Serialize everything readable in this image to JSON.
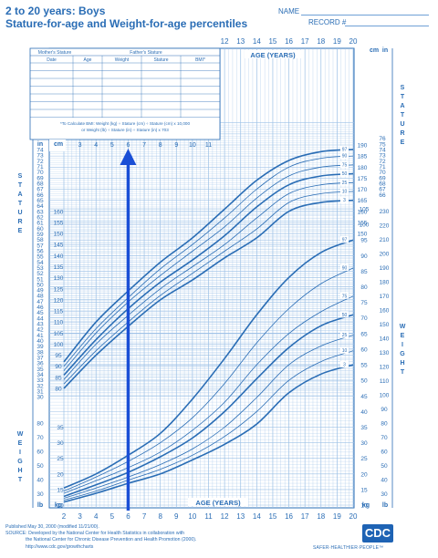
{
  "header": {
    "title_line1": "2 to 20 years: Boys",
    "title_line2": "Stature-for-age and Weight-for-age percentiles",
    "name_label": "NAME",
    "record_label": "RECORD #"
  },
  "table": {
    "mothers_stature": "Mother's Stature",
    "fathers_stature": "Father's Stature",
    "columns": [
      "Date",
      "Age",
      "Weight",
      "Stature",
      "BMI*"
    ],
    "bmi_note_line1": "*To Calculate BMI: Weight (kg) ÷ Stature (cm) ÷ Stature (cm) x 10,000",
    "bmi_note_line2": "or Weight (lb) ÷ Stature (in) ÷ Stature (in) x 703"
  },
  "labels": {
    "age_years": "AGE (YEARS)",
    "in": "in",
    "cm": "cm",
    "lb": "lb",
    "kg": "kg",
    "stature_vertical": "STATURE",
    "weight_vertical": "WEIGHT"
  },
  "footer": {
    "line1": "Published May 30, 2000 (modified 11/21/00).",
    "line2": "SOURCE: Developed by the National Center for Health Statistics in collaboration with",
    "line3": "the National Center for Chronic Disease Prevention and Health Promotion (2000).",
    "line4": "http://www.cdc.gov/growthcharts",
    "logo": "CDC",
    "tagline": "SAFER·HEALTHIER·PEOPLE™"
  },
  "colors": {
    "primary": "#2a6db5",
    "grid": "#9cc0e6",
    "arrow": "#1a4fd6"
  },
  "chart_data": {
    "type": "line",
    "title": "Stature-for-age and Weight-for-age percentiles",
    "xlabel": "AGE (YEARS)",
    "x_ticks": [
      2,
      3,
      4,
      5,
      6,
      7,
      8,
      9,
      10,
      11,
      12,
      13,
      14,
      15,
      16,
      17,
      18,
      19,
      20
    ],
    "xlim": [
      2,
      20
    ],
    "stature": {
      "ylabel": "cm",
      "ylim": [
        75,
        200
      ],
      "cm_ticks": [
        80,
        85,
        90,
        95,
        100,
        105,
        110,
        115,
        120,
        125,
        130,
        135,
        140,
        145,
        150,
        155,
        160,
        165,
        170,
        175,
        180,
        185,
        190
      ],
      "in_ticks": [
        30,
        31,
        32,
        33,
        34,
        35,
        36,
        37,
        38,
        39,
        40,
        41,
        42,
        43,
        44,
        45,
        46,
        47,
        48,
        49,
        50,
        51,
        52,
        53,
        54,
        55,
        56,
        57,
        58,
        59,
        60,
        61,
        62,
        63,
        64,
        65,
        66,
        67,
        68,
        69,
        70,
        71,
        72,
        73,
        74,
        75,
        76
      ],
      "ages": [
        2,
        4,
        6,
        8,
        10,
        12,
        14,
        16,
        18,
        20
      ],
      "series": [
        {
          "name": "97",
          "values": [
            92,
            110,
            124,
            137,
            148,
            161,
            174,
            183,
            187,
            188
          ]
        },
        {
          "name": "90",
          "values": [
            90,
            107,
            121,
            134,
            145,
            157,
            170,
            180,
            184,
            185
          ]
        },
        {
          "name": "75",
          "values": [
            88,
            105,
            119,
            131,
            142,
            153,
            166,
            176,
            180,
            181
          ]
        },
        {
          "name": "50",
          "values": [
            86,
            102,
            116,
            128,
            138,
            149,
            162,
            172,
            176,
            177
          ]
        },
        {
          "name": "25",
          "values": [
            84,
            100,
            113,
            125,
            135,
            145,
            157,
            168,
            172,
            173
          ]
        },
        {
          "name": "10",
          "values": [
            82,
            97,
            110,
            122,
            132,
            142,
            152,
            164,
            168,
            169
          ]
        },
        {
          "name": "3",
          "values": [
            80,
            95,
            108,
            120,
            129,
            139,
            148,
            160,
            164,
            165
          ]
        }
      ]
    },
    "weight": {
      "ylabel": "kg",
      "ylim": [
        10,
        105
      ],
      "kg_ticks": [
        10,
        15,
        20,
        25,
        30,
        35,
        40,
        45,
        50,
        55,
        60,
        65,
        70,
        75,
        80,
        85,
        90,
        95,
        100,
        105
      ],
      "lb_ticks": [
        30,
        40,
        50,
        60,
        70,
        80,
        90,
        100,
        110,
        120,
        130,
        140,
        150,
        160,
        170,
        180,
        190,
        200,
        210,
        220,
        230
      ],
      "ages": [
        2,
        4,
        6,
        8,
        10,
        12,
        14,
        16,
        18,
        20
      ],
      "series": [
        {
          "name": "97",
          "values": [
            15.5,
            20,
            26,
            33,
            44,
            57,
            71,
            83,
            91,
            95
          ]
        },
        {
          "name": "90",
          "values": [
            14.5,
            19,
            24,
            30,
            38,
            49,
            62,
            73,
            81,
            86
          ]
        },
        {
          "name": "75",
          "values": [
            13.8,
            17.8,
            22,
            27,
            34,
            43,
            55,
            65,
            72,
            77
          ]
        },
        {
          "name": "50",
          "values": [
            12.8,
            16.5,
            20.5,
            25.5,
            31.5,
            40,
            50.5,
            60.5,
            67.5,
            71
          ]
        },
        {
          "name": "25",
          "values": [
            12.2,
            15.5,
            19,
            23,
            28,
            35,
            44.5,
            55,
            61,
            64.5
          ]
        },
        {
          "name": "10",
          "values": [
            11.6,
            14.5,
            18,
            21.5,
            26,
            32,
            40,
            50,
            56,
            59.5
          ]
        },
        {
          "name": "3",
          "values": [
            11,
            13.8,
            17,
            20,
            24.5,
            29.5,
            36,
            46,
            52,
            55
          ]
        }
      ]
    },
    "annotation": {
      "type": "arrow",
      "x": 6
    }
  }
}
